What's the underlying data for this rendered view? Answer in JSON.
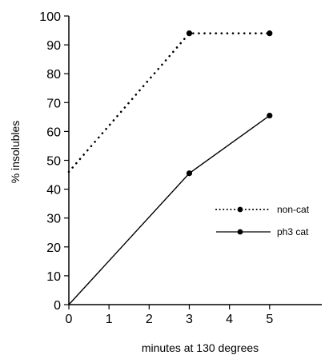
{
  "chart_data": {
    "type": "line",
    "xlabel": "minutes at 130 degrees",
    "ylabel": "% insolubles",
    "xlim": [
      0,
      6.3
    ],
    "ylim": [
      0,
      100
    ],
    "x_ticks": [
      "0",
      "1",
      "2",
      "3",
      "4",
      "5"
    ],
    "y_ticks": [
      "0",
      "10",
      "20",
      "30",
      "40",
      "50",
      "60",
      "70",
      "80",
      "90",
      "100"
    ],
    "legend_position": "right",
    "grid": false,
    "series": [
      {
        "name": "non-cat",
        "style": "dotted",
        "x": [
          0,
          3,
          5
        ],
        "y": [
          46,
          94,
          94
        ],
        "markers": [
          false,
          true,
          true
        ],
        "color": "#000000"
      },
      {
        "name": "ph3 cat",
        "style": "solid",
        "x": [
          0,
          3,
          5
        ],
        "y": [
          0,
          45.5,
          65.5
        ],
        "markers": [
          false,
          true,
          true
        ],
        "color": "#000000"
      }
    ]
  }
}
